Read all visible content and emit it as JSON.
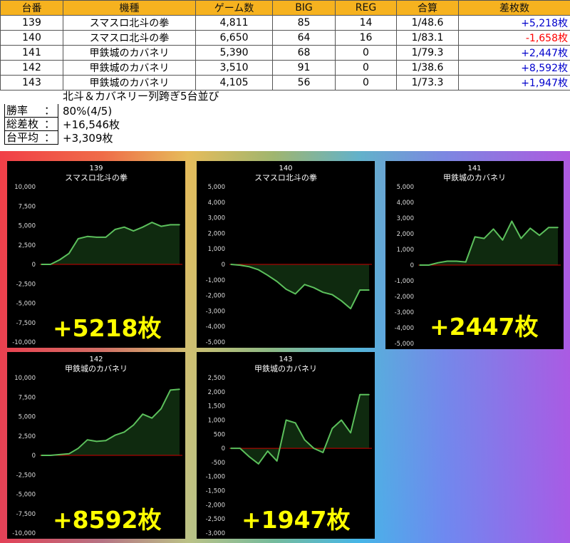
{
  "table": {
    "headers": [
      "台番",
      "機種",
      "ゲーム数",
      "BIG",
      "REG",
      "合算",
      "差枚数"
    ],
    "rows": [
      {
        "no": "139",
        "model": "スマスロ北斗の拳",
        "games": "4,811",
        "big": "85",
        "reg": "14",
        "combined": "1/48.6",
        "diff": "+5,218枚",
        "sign": "pos"
      },
      {
        "no": "140",
        "model": "スマスロ北斗の拳",
        "games": "6,650",
        "big": "64",
        "reg": "16",
        "combined": "1/83.1",
        "diff": "-1,658枚",
        "sign": "neg"
      },
      {
        "no": "141",
        "model": "甲鉄城のカバネリ",
        "games": "5,390",
        "big": "68",
        "reg": "0",
        "combined": "1/79.3",
        "diff": "+2,447枚",
        "sign": "pos"
      },
      {
        "no": "142",
        "model": "甲鉄城のカバネリ",
        "games": "3,510",
        "big": "91",
        "reg": "0",
        "combined": "1/38.6",
        "diff": "+8,592枚",
        "sign": "pos"
      },
      {
        "no": "143",
        "model": "甲鉄城のカバネリ",
        "games": "4,105",
        "big": "56",
        "reg": "0",
        "combined": "1/73.3",
        "diff": "+1,947枚",
        "sign": "pos"
      }
    ]
  },
  "subtitle": "北斗＆カバネリー列跨ぎ5台並び",
  "summary": [
    {
      "label": "勝率",
      "sep": "：",
      "value": "80%(4/5)"
    },
    {
      "label": "総差枚",
      "sep": "：",
      "value": "+16,546枚"
    },
    {
      "label": "台平均",
      "sep": "：",
      "value": "+3,309枚"
    }
  ],
  "colors": {
    "header_bg": "#f6b21f",
    "line": "#5cc05c",
    "fill": "#0f2a0f",
    "zero": "#cc0000",
    "big_text": "#ffff00"
  },
  "chart_data": [
    {
      "type": "area",
      "title": "139",
      "subtitle": "スマスロ北斗の拳",
      "ylim": [
        -10000,
        10000
      ],
      "yticks": [
        "10,000",
        "7,500",
        "5,000",
        "2,500",
        "0",
        "-2,500",
        "-5,000",
        "-7,500",
        "-10,000"
      ],
      "values": [
        0,
        0,
        600,
        1400,
        3300,
        3600,
        3500,
        3500,
        4500,
        4800,
        4300,
        4800,
        5400,
        4900,
        5100,
        5100
      ],
      "big_label": "+5218枚"
    },
    {
      "type": "area",
      "title": "140",
      "subtitle": "スマスロ北斗の拳",
      "ylim": [
        -5000,
        5000
      ],
      "yticks": [
        "5,000",
        "4,000",
        "3,000",
        "2,000",
        "1,000",
        "0",
        "-1,000",
        "-2,000",
        "-3,000",
        "-4,000",
        "-5,000"
      ],
      "values": [
        0,
        -50,
        -150,
        -350,
        -700,
        -1100,
        -1600,
        -1900,
        -1300,
        -1500,
        -1800,
        -1950,
        -2350,
        -2850,
        -1650,
        -1650
      ],
      "big_label": ""
    },
    {
      "type": "area",
      "title": "141",
      "subtitle": "甲鉄城のカバネリ",
      "ylim": [
        -5000,
        5000
      ],
      "yticks": [
        "5,000",
        "4,000",
        "3,000",
        "2,000",
        "1,000",
        "0",
        "-1,000",
        "-2,000",
        "-3,000",
        "-4,000",
        "-5,000"
      ],
      "values": [
        0,
        0,
        150,
        250,
        250,
        200,
        1800,
        1700,
        2300,
        1600,
        2800,
        1700,
        2350,
        1900,
        2400,
        2400
      ],
      "big_label": "+2447枚"
    },
    {
      "type": "area",
      "title": "142",
      "subtitle": "甲鉄城のカバネリ",
      "ylim": [
        -10000,
        10000
      ],
      "yticks": [
        "10,000",
        "7,500",
        "5,000",
        "2,500",
        "0",
        "-2,500",
        "-5,000",
        "-7,500",
        "-10,000"
      ],
      "values": [
        0,
        0,
        100,
        200,
        900,
        2000,
        1800,
        1900,
        2600,
        3000,
        3900,
        5300,
        4800,
        6000,
        8400,
        8500
      ],
      "big_label": "+8592枚"
    },
    {
      "type": "area",
      "title": "143",
      "subtitle": "甲鉄城のカバネリ",
      "ylim": [
        -3000,
        2500
      ],
      "yticks": [
        "2,500",
        "2,000",
        "1,500",
        "1,000",
        "500",
        "0",
        "-500",
        "-1,000",
        "-1,500",
        "-2,000",
        "-2,500",
        "-3,000"
      ],
      "values": [
        0,
        0,
        -300,
        -550,
        -100,
        -450,
        1000,
        900,
        300,
        0,
        -150,
        700,
        1000,
        550,
        1900,
        1900
      ],
      "big_label": "+1947枚"
    }
  ]
}
